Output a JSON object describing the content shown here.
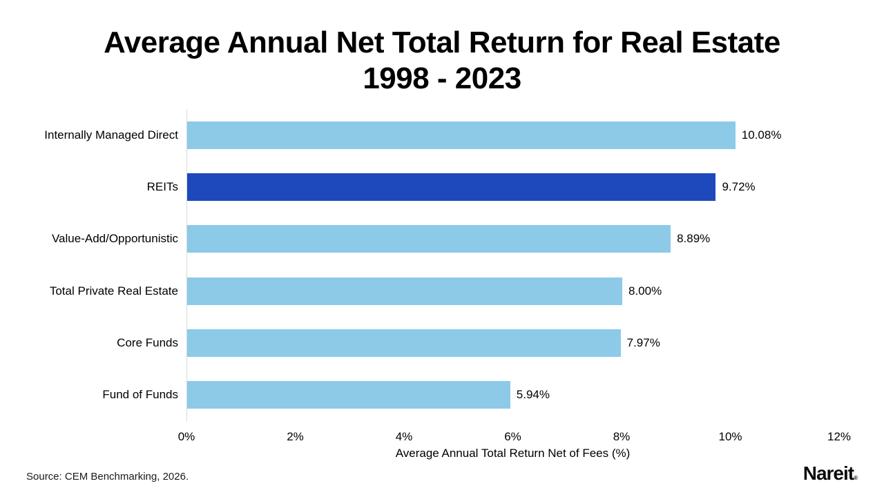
{
  "title": {
    "line1": "Average Annual Net Total Return for Real Estate",
    "line2": "1998 - 2023"
  },
  "chart_data": {
    "type": "bar",
    "orientation": "horizontal",
    "categories": [
      "Internally Managed Direct",
      "REITs",
      "Value-Add/Opportunistic",
      "Total Private Real Estate",
      "Core Funds",
      "Fund of Funds"
    ],
    "values": [
      10.08,
      9.72,
      8.89,
      8.0,
      7.97,
      5.94
    ],
    "value_labels": [
      "10.08%",
      "9.72%",
      "8.89%",
      "8.00%",
      "7.97%",
      "5.94%"
    ],
    "bar_colors": [
      "#8CCAE8",
      "#1E49BC",
      "#8CCAE8",
      "#8CCAE8",
      "#8CCAE8",
      "#8CCAE8"
    ],
    "title": "Average Annual Net Total Return for Real Estate 1998 - 2023",
    "xlabel": "Average Annual Total Return Net of Fees (%)",
    "ylabel": "",
    "x_ticks": [
      "0%",
      "2%",
      "4%",
      "6%",
      "8%",
      "10%",
      "12%"
    ],
    "x_tick_values": [
      0,
      2,
      4,
      6,
      8,
      10,
      12
    ],
    "xlim": [
      0,
      12
    ],
    "grid": false,
    "legend": false
  },
  "colors": {
    "bar_default": "#8CCAE8",
    "bar_highlight": "#1E49BC",
    "axis_line": "#d9d9d9",
    "text": "#000000"
  },
  "footer": {
    "source": "Source: CEM Benchmarking, 2026.",
    "brand": "Nareit",
    "brand_mark": "®"
  }
}
